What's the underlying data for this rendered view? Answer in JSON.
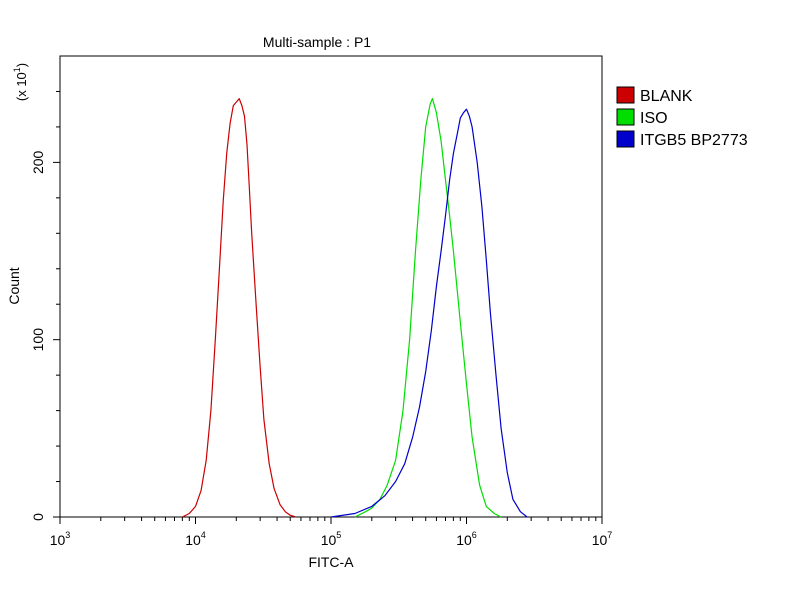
{
  "chart_data": {
    "type": "line",
    "title": "Multi-sample : P1",
    "xlabel": "FITC-A",
    "ylabel": "Count",
    "y_scale_note_base": "(x 10",
    "y_scale_note_exp": "1",
    "y_scale_note_tail": ")",
    "x_scale": "log",
    "xlim": [
      1000,
      10000000
    ],
    "ylim": [
      0,
      260
    ],
    "x_ticks": [
      {
        "base": "10",
        "exp": "3",
        "value": 1000
      },
      {
        "base": "10",
        "exp": "4",
        "value": 10000
      },
      {
        "base": "10",
        "exp": "5",
        "value": 100000
      },
      {
        "base": "10",
        "exp": "6",
        "value": 1000000
      },
      {
        "base": "10",
        "exp": "7",
        "value": 10000000
      }
    ],
    "y_ticks": [
      {
        "label": "0",
        "value": 0
      },
      {
        "label": "100",
        "value": 100
      },
      {
        "label": "200",
        "value": 200
      }
    ],
    "grid": false,
    "legend_position": "top-right outside",
    "series": [
      {
        "name": "BLANK",
        "color": "#cc0000",
        "x": [
          8000,
          9000,
          10000,
          11000,
          12000,
          13000,
          14000,
          15000,
          16000,
          17000,
          18000,
          19000,
          20000,
          21000,
          22000,
          23000,
          24000,
          25000,
          26000,
          28000,
          30000,
          32000,
          35000,
          38000,
          42000,
          46000,
          50000,
          55000
        ],
        "y": [
          0,
          2,
          6,
          15,
          32,
          60,
          100,
          140,
          178,
          205,
          222,
          232,
          234,
          236,
          232,
          226,
          210,
          185,
          160,
          120,
          85,
          55,
          30,
          16,
          7,
          3,
          1,
          0
        ]
      },
      {
        "name": "ISO",
        "color": "#00dd00",
        "x": [
          150000,
          180000,
          200000,
          230000,
          260000,
          300000,
          340000,
          380000,
          420000,
          460000,
          500000,
          540000,
          560000,
          600000,
          650000,
          700000,
          750000,
          800000,
          900000,
          1000000,
          1100000,
          1250000,
          1400000,
          1600000,
          1800000
        ],
        "y": [
          0,
          3,
          5,
          10,
          18,
          32,
          60,
          100,
          150,
          190,
          220,
          233,
          236,
          228,
          212,
          190,
          170,
          150,
          110,
          75,
          45,
          18,
          6,
          2,
          0
        ]
      },
      {
        "name": "ITGB5 BP2773",
        "color": "#0000cc",
        "x": [
          100000,
          150000,
          200000,
          250000,
          300000,
          350000,
          400000,
          450000,
          500000,
          550000,
          600000,
          650000,
          700000,
          750000,
          800000,
          850000,
          900000,
          950000,
          1000000,
          1050000,
          1100000,
          1200000,
          1300000,
          1400000,
          1500000,
          1650000,
          1800000,
          2000000,
          2200000,
          2500000,
          2800000
        ],
        "y": [
          0,
          2,
          6,
          12,
          20,
          30,
          45,
          62,
          82,
          105,
          130,
          150,
          170,
          190,
          205,
          215,
          225,
          228,
          230,
          226,
          220,
          200,
          175,
          145,
          115,
          80,
          50,
          25,
          10,
          3,
          0
        ]
      }
    ]
  }
}
